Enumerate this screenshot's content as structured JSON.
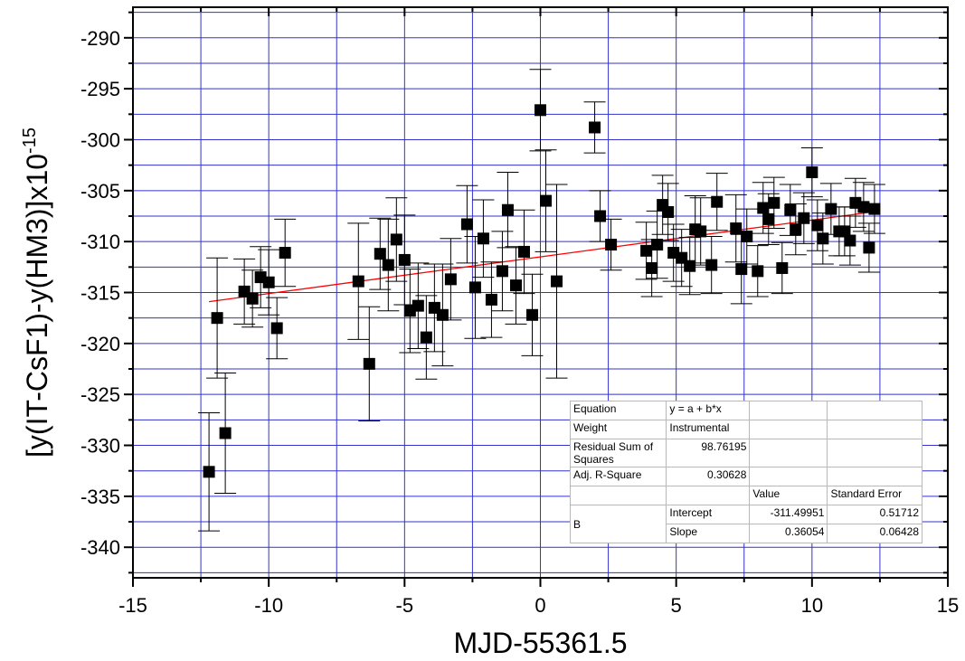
{
  "chart_data": {
    "type": "scatter",
    "xlabel": "MJD-55361.5",
    "ylabel_main": "[y(IT-CsF1)-y(HM3)]x10",
    "ylabel_sup": "-15",
    "xlim": [
      -15,
      15
    ],
    "ylim": [
      -343,
      -287
    ],
    "xticks": [
      -15,
      -10,
      -5,
      0,
      5,
      10,
      15
    ],
    "yticks": [
      -340,
      -335,
      -330,
      -325,
      -320,
      -315,
      -310,
      -305,
      -300,
      -295,
      -290
    ],
    "grid": true,
    "colors": {
      "points": "#000000",
      "grid": "#3333cc",
      "fit": "#ff0000"
    },
    "fit_line": {
      "intercept": -311.49951,
      "slope": 0.36054,
      "x_range": [
        -12.2,
        12.3
      ]
    },
    "points": [
      {
        "x": -12.2,
        "y": -332.6,
        "err": 5.8
      },
      {
        "x": -11.9,
        "y": -317.5,
        "err": 5.9
      },
      {
        "x": -11.6,
        "y": -328.8,
        "err": 5.9
      },
      {
        "x": -10.9,
        "y": -314.9,
        "err": 3.2
      },
      {
        "x": -10.6,
        "y": -315.6,
        "err": 2.8
      },
      {
        "x": -10.3,
        "y": -313.5,
        "err": 3.0
      },
      {
        "x": -10.0,
        "y": -314.0,
        "err": 3.2
      },
      {
        "x": -9.7,
        "y": -318.5,
        "err": 3.0
      },
      {
        "x": -9.4,
        "y": -311.1,
        "err": 3.3
      },
      {
        "x": -6.7,
        "y": -313.9,
        "err": 5.7
      },
      {
        "x": -6.3,
        "y": -322.0,
        "err": 5.6
      },
      {
        "x": -5.9,
        "y": -311.2,
        "err": 3.5
      },
      {
        "x": -5.6,
        "y": -312.3,
        "err": 4.5
      },
      {
        "x": -5.3,
        "y": -309.8,
        "err": 4.1
      },
      {
        "x": -5.0,
        "y": -311.8,
        "err": 4.4
      },
      {
        "x": -4.8,
        "y": -316.8,
        "err": 4.1
      },
      {
        "x": -4.5,
        "y": -316.3,
        "err": 4.2
      },
      {
        "x": -4.2,
        "y": -319.4,
        "err": 4.1
      },
      {
        "x": -3.9,
        "y": -316.5,
        "err": 4.3
      },
      {
        "x": -3.6,
        "y": -317.2,
        "err": 5.0
      },
      {
        "x": -3.3,
        "y": -313.7,
        "err": 4.0
      },
      {
        "x": -2.7,
        "y": -308.3,
        "err": 3.8
      },
      {
        "x": -2.4,
        "y": -314.5,
        "err": 5.0
      },
      {
        "x": -2.1,
        "y": -309.7,
        "err": 3.8
      },
      {
        "x": -1.8,
        "y": -315.7,
        "err": 3.7
      },
      {
        "x": -1.4,
        "y": -312.9,
        "err": 3.9
      },
      {
        "x": -1.2,
        "y": -306.9,
        "err": 3.7
      },
      {
        "x": -0.9,
        "y": -314.3,
        "err": 3.8
      },
      {
        "x": -0.6,
        "y": -311.0,
        "err": 4.1
      },
      {
        "x": -0.3,
        "y": -317.2,
        "err": 4.0
      },
      {
        "x": 0.0,
        "y": -297.1,
        "err": 4.0
      },
      {
        "x": 0.2,
        "y": -306.0,
        "err": 5.0
      },
      {
        "x": 0.6,
        "y": -313.9,
        "err": 9.5
      },
      {
        "x": 2.0,
        "y": -298.8,
        "err": 2.5
      },
      {
        "x": 2.2,
        "y": -307.5,
        "err": 2.5
      },
      {
        "x": 2.6,
        "y": -310.3,
        "err": 2.5
      },
      {
        "x": 3.9,
        "y": -310.9,
        "err": 2.8
      },
      {
        "x": 4.1,
        "y": -312.6,
        "err": 2.8
      },
      {
        "x": 4.3,
        "y": -310.3,
        "err": 3.3
      },
      {
        "x": 4.5,
        "y": -306.4,
        "err": 2.9
      },
      {
        "x": 4.7,
        "y": -307.1,
        "err": 2.8
      },
      {
        "x": 4.9,
        "y": -311.1,
        "err": 2.8
      },
      {
        "x": 5.2,
        "y": -311.6,
        "err": 2.8
      },
      {
        "x": 5.5,
        "y": -312.4,
        "err": 2.8
      },
      {
        "x": 5.7,
        "y": -308.8,
        "err": 3.3
      },
      {
        "x": 5.9,
        "y": -309.0,
        "err": 3.3
      },
      {
        "x": 6.3,
        "y": -312.3,
        "err": 2.8
      },
      {
        "x": 6.5,
        "y": -306.1,
        "err": 2.8
      },
      {
        "x": 7.2,
        "y": -308.7,
        "err": 3.3
      },
      {
        "x": 7.4,
        "y": -312.7,
        "err": 3.4
      },
      {
        "x": 7.6,
        "y": -309.5,
        "err": 2.7
      },
      {
        "x": 8.0,
        "y": -312.9,
        "err": 2.5
      },
      {
        "x": 8.2,
        "y": -306.7,
        "err": 2.5
      },
      {
        "x": 8.4,
        "y": -307.8,
        "err": 2.5
      },
      {
        "x": 8.6,
        "y": -306.2,
        "err": 2.5
      },
      {
        "x": 8.9,
        "y": -312.6,
        "err": 2.5
      },
      {
        "x": 9.2,
        "y": -306.9,
        "err": 2.5
      },
      {
        "x": 9.4,
        "y": -308.8,
        "err": 2.5
      },
      {
        "x": 9.7,
        "y": -307.7,
        "err": 2.5
      },
      {
        "x": 10.0,
        "y": -303.2,
        "err": 2.4
      },
      {
        "x": 10.2,
        "y": -308.4,
        "err": 2.5
      },
      {
        "x": 10.4,
        "y": -309.7,
        "err": 2.5
      },
      {
        "x": 10.7,
        "y": -306.8,
        "err": 2.5
      },
      {
        "x": 11.0,
        "y": -309.0,
        "err": 2.4
      },
      {
        "x": 11.2,
        "y": -309.0,
        "err": 2.4
      },
      {
        "x": 11.4,
        "y": -309.9,
        "err": 2.4
      },
      {
        "x": 11.6,
        "y": -306.2,
        "err": 2.4
      },
      {
        "x": 11.9,
        "y": -306.6,
        "err": 2.4
      },
      {
        "x": 12.1,
        "y": -310.6,
        "err": 2.4
      },
      {
        "x": 12.3,
        "y": -306.8,
        "err": 2.4
      }
    ]
  },
  "stats_table": {
    "equation_label": "Equation",
    "equation_value": "y = a + b*x",
    "weight_label": "Weight",
    "weight_value": "Instrumental",
    "rss_label": "Residual Sum of Squares",
    "rss_value": "98.76195",
    "adjr2_label": "Adj. R-Square",
    "adjr2_value": "0.30628",
    "col_value": "Value",
    "col_stderr": "Standard Error",
    "row_group": "B",
    "intercept_label": "Intercept",
    "intercept_value": "-311.49951",
    "intercept_err": "0.51712",
    "slope_label": "Slope",
    "slope_value": "0.36054",
    "slope_err": "0.06428"
  }
}
